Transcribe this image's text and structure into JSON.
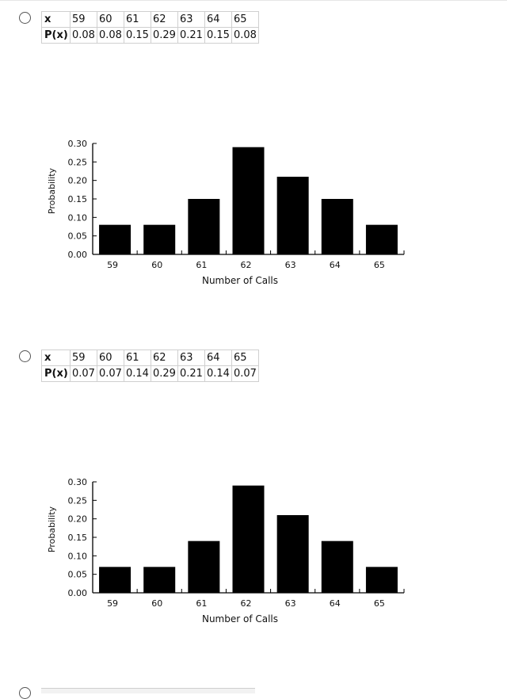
{
  "options": [
    {
      "table": {
        "x_header": "x",
        "p_header": "P(x)",
        "x_values": [
          "59",
          "60",
          "61",
          "62",
          "63",
          "64",
          "65"
        ],
        "p_values": [
          "0.08",
          "0.08",
          "0.15",
          "0.29",
          "0.21",
          "0.15",
          "0.08"
        ]
      },
      "chart_data": {
        "type": "bar",
        "categories": [
          "59",
          "60",
          "61",
          "62",
          "63",
          "64",
          "65"
        ],
        "values": [
          0.08,
          0.08,
          0.15,
          0.29,
          0.21,
          0.15,
          0.08
        ],
        "xlabel": "Number of Calls",
        "ylabel": "Probability",
        "ylim": [
          0,
          0.3
        ],
        "yticks": [
          "0.00",
          "0.05",
          "0.10",
          "0.15",
          "0.20",
          "0.25",
          "0.30"
        ],
        "bar_color": "#000000",
        "grid": false
      }
    },
    {
      "table": {
        "x_header": "x",
        "p_header": "P(x)",
        "x_values": [
          "59",
          "60",
          "61",
          "62",
          "63",
          "64",
          "65"
        ],
        "p_values": [
          "0.07",
          "0.07",
          "0.14",
          "0.29",
          "0.21",
          "0.14",
          "0.07"
        ]
      },
      "chart_data": {
        "type": "bar",
        "categories": [
          "59",
          "60",
          "61",
          "62",
          "63",
          "64",
          "65"
        ],
        "values": [
          0.07,
          0.07,
          0.14,
          0.29,
          0.21,
          0.14,
          0.07
        ],
        "xlabel": "Number of Calls",
        "ylabel": "Probability",
        "ylim": [
          0,
          0.3
        ],
        "yticks": [
          "0.00",
          "0.05",
          "0.10",
          "0.15",
          "0.20",
          "0.25",
          "0.30"
        ],
        "bar_color": "#000000",
        "grid": false
      }
    }
  ]
}
